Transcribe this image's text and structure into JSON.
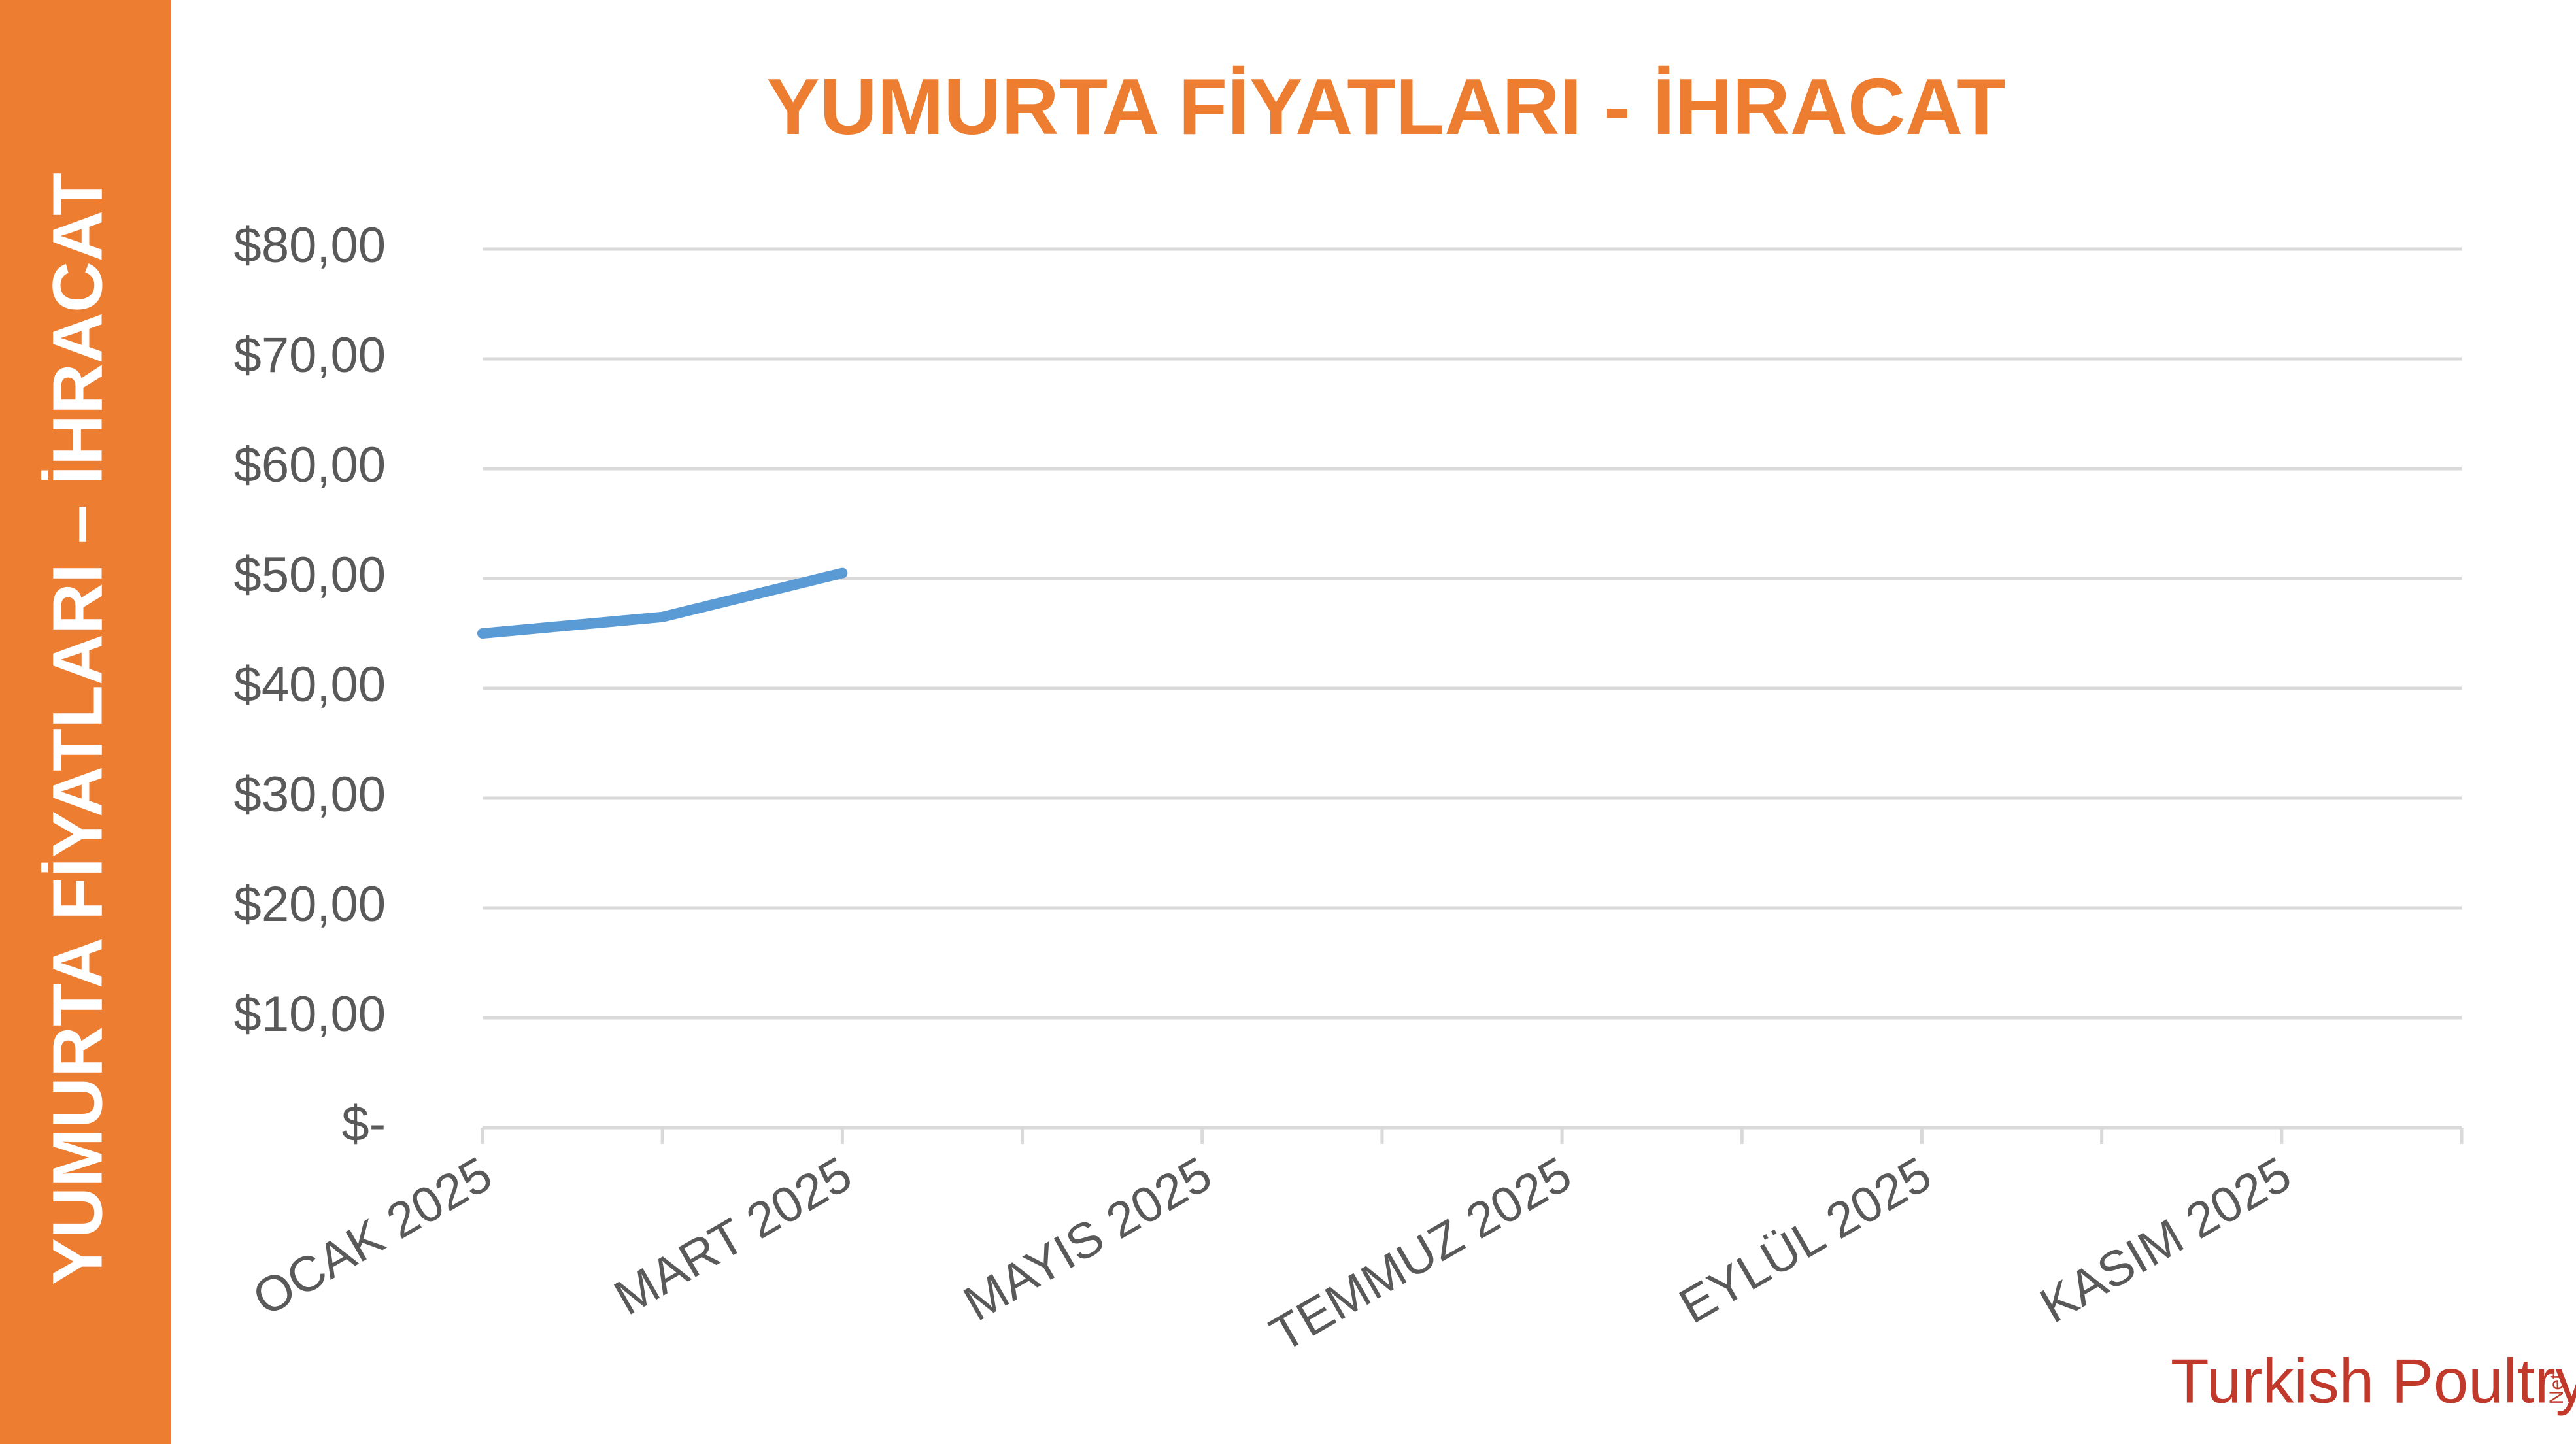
{
  "sidebar_title": "YUMURTA FİYATLARI – İHRACAT",
  "logo": {
    "brand": "Turkish Poultry",
    "suffix": "Net"
  },
  "chart_data": {
    "type": "line",
    "title": "YUMURTA FİYATLARI - İHRACAT",
    "categories": [
      "OCAK 2025",
      null,
      "MART 2025",
      null,
      "MAYIS 2025",
      null,
      "TEMMUZ 2025",
      null,
      "EYLÜL 2025",
      null,
      "KASIM 2025",
      null
    ],
    "series": [
      {
        "color": "#5b9bd5",
        "values": [
          45,
          46.5,
          50.5,
          null,
          null,
          null,
          null,
          null,
          null,
          null,
          null,
          null
        ]
      }
    ],
    "ylim": [
      0,
      80
    ],
    "yticks": [
      {
        "value": 0,
        "label": "$-"
      },
      {
        "value": 10,
        "label": "$10,00"
      },
      {
        "value": 20,
        "label": "$20,00"
      },
      {
        "value": 30,
        "label": "$30,00"
      },
      {
        "value": 40,
        "label": "$40,00"
      },
      {
        "value": 50,
        "label": "$50,00"
      },
      {
        "value": 60,
        "label": "$60,00"
      },
      {
        "value": 70,
        "label": "$70,00"
      },
      {
        "value": 80,
        "label": "$80,00"
      }
    ],
    "grid": true
  }
}
